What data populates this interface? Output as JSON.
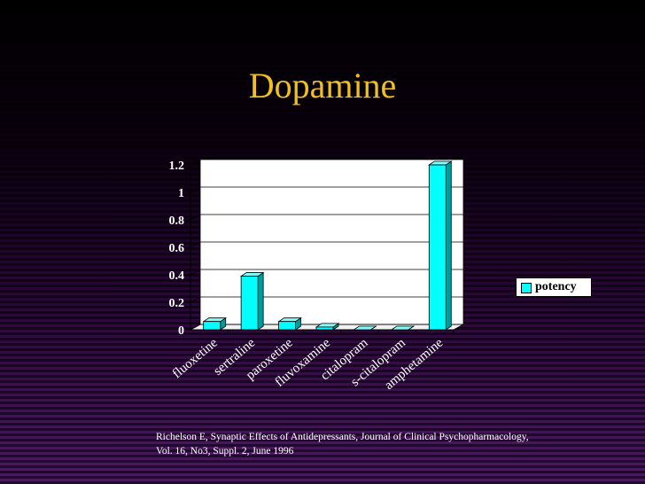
{
  "slide": {
    "title": "Dopamine",
    "citation_line1": "Richelson E, Synaptic Effects of Antidepressants, Journal of Clinical Psychopharmacology,",
    "citation_line2": "Vol. 16, No3, Suppl. 2, June 1996"
  },
  "colors": {
    "title": "#f0c020",
    "bar": "#00ffff",
    "plot_background": "#ffffff",
    "axis_text": "#ffffff"
  },
  "chart_data": {
    "type": "bar",
    "title": "",
    "xlabel": "",
    "ylabel": "",
    "categories": [
      "fluoxetine",
      "sertraline",
      "paroxetine",
      "fluvoxamine",
      "citalopram",
      "s-citalopram",
      "amphetamine"
    ],
    "series": [
      {
        "name": "potency",
        "values": [
          0.06,
          0.39,
          0.06,
          0.02,
          0.0,
          0.0,
          1.2
        ]
      }
    ],
    "ylim": [
      0,
      1.2
    ],
    "y_ticks": [
      "0",
      "0.2",
      "0.4",
      "0.6",
      "0.8",
      "1",
      "1.2"
    ],
    "grid": true,
    "legend_position": "right",
    "style": "3d-bar"
  }
}
